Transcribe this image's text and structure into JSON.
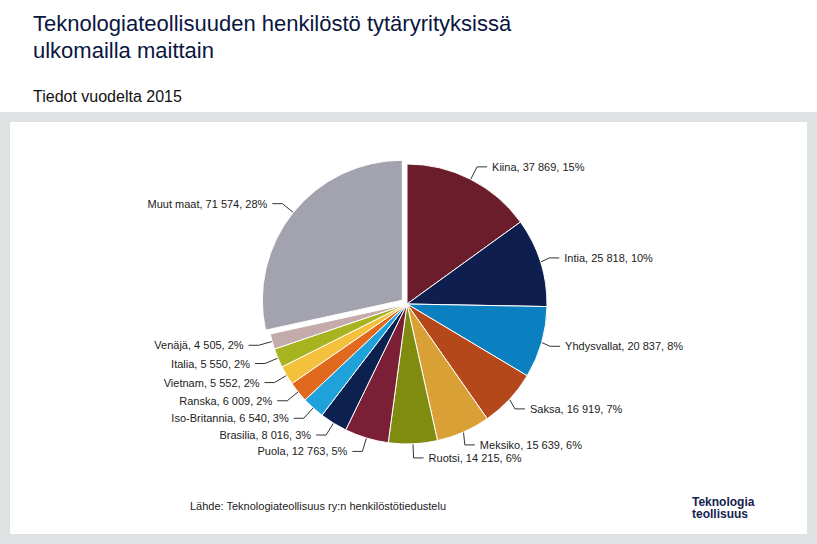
{
  "chart_data": {
    "type": "pie",
    "title": "Teknologiateollisuuden henkilöstö tytäryrityksissä\nulkomailla maittain",
    "subtitle": "Tiedot vuodelta 2015",
    "source": "Lähde: Teknologiateollisuus ry:n henkilöstötiedustelu",
    "logo": [
      "Teknologia",
      "teollisuus"
    ],
    "categories": [
      "Kiina",
      "Intia",
      "Yhdysvallat",
      "Saksa",
      "Meksiko",
      "Ruotsi",
      "Puola",
      "Brasilia",
      "Iso-Britannia",
      "Ranska",
      "Vietnam",
      "Italia",
      "Venäjä",
      "Muut maat"
    ],
    "values": [
      37869,
      25818,
      20837,
      16919,
      15639,
      14215,
      12763,
      8016,
      6540,
      6009,
      5552,
      5550,
      4505,
      71574
    ],
    "value_labels": [
      "Kiina, 37 869, 15%",
      "Intia, 25 818, 10%",
      "Yhdysvallat, 20 837, 8%",
      "Saksa, 16 919, 7%",
      "Meksiko, 15 639, 6%",
      "Ruotsi, 14 215, 6%",
      "Puola, 12 763, 5%",
      "Brasilia, 8 016, 3%",
      "Iso-Britannia, 6 540, 3%",
      "Ranska, 6 009, 2%",
      "Vietnam, 5 552, 2%",
      "Italia, 5 550, 2%",
      "Venäjä, 4 505, 2%",
      "Muut maat, 71 574, 28%"
    ],
    "colors": [
      "#6b1d2b",
      "#0e1f4f",
      "#0a80c0",
      "#b4481b",
      "#d9a035",
      "#7f8c10",
      "#7a1f36",
      "#0d2150",
      "#1fa2dc",
      "#e0691d",
      "#f4c13c",
      "#a7b420",
      "#c3abab",
      "#a3a3af"
    ],
    "data_labels": true
  }
}
